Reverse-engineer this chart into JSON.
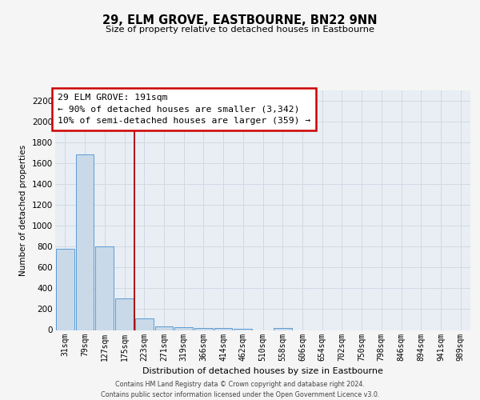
{
  "title": "29, ELM GROVE, EASTBOURNE, BN22 9NN",
  "subtitle": "Size of property relative to detached houses in Eastbourne",
  "xlabel": "Distribution of detached houses by size in Eastbourne",
  "ylabel": "Number of detached properties",
  "bar_labels": [
    "31sqm",
    "79sqm",
    "127sqm",
    "175sqm",
    "223sqm",
    "271sqm",
    "319sqm",
    "366sqm",
    "414sqm",
    "462sqm",
    "510sqm",
    "558sqm",
    "606sqm",
    "654sqm",
    "702sqm",
    "750sqm",
    "798sqm",
    "846sqm",
    "894sqm",
    "941sqm",
    "989sqm"
  ],
  "bar_values": [
    775,
    1680,
    800,
    300,
    115,
    38,
    28,
    22,
    18,
    12,
    0,
    18,
    0,
    0,
    0,
    0,
    0,
    0,
    0,
    0,
    0
  ],
  "bar_color": "#c9d9e8",
  "bar_edge_color": "#5b9bd5",
  "ylim": [
    0,
    2300
  ],
  "yticks": [
    0,
    200,
    400,
    600,
    800,
    1000,
    1200,
    1400,
    1600,
    1800,
    2000,
    2200
  ],
  "red_line_x": 3.5,
  "annotation_title": "29 ELM GROVE: 191sqm",
  "annotation_line1": "← 90% of detached houses are smaller (3,342)",
  "annotation_line2": "10% of semi-detached houses are larger (359) →",
  "annotation_box_color": "#ffffff",
  "annotation_box_edge": "#cc0000",
  "grid_color": "#d0dae5",
  "bg_color": "#e8eef4",
  "fig_bg_color": "#f5f5f5",
  "footer1": "Contains HM Land Registry data © Crown copyright and database right 2024.",
  "footer2": "Contains public sector information licensed under the Open Government Licence v3.0."
}
